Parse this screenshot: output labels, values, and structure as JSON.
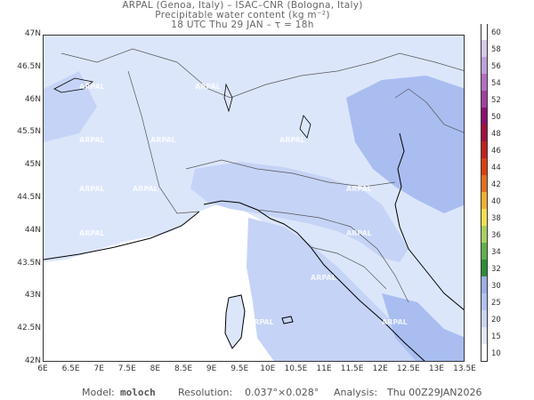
{
  "title": {
    "line1": "ARPAL (Genoa, Italy)  –  ISAC–CNR (Bologna, Italy)",
    "line2": "Precipitable water content (kg m⁻²)",
    "line3": "18 UTC Thu 29 JAN  –  τ = 18h"
  },
  "map": {
    "lat_labels": [
      "47N",
      "46.5N",
      "46N",
      "45.5N",
      "45N",
      "44.5N",
      "44N",
      "43.5N",
      "43N",
      "42.5N",
      "42N"
    ],
    "lon_labels": [
      "6E",
      "6.5E",
      "7E",
      "7.5E",
      "8E",
      "8.5E",
      "9E",
      "9.5E",
      "10E",
      "10.5E",
      "11E",
      "11.5E",
      "12E",
      "12.5E",
      "13E",
      "13.5E"
    ],
    "lat_range": [
      42,
      47
    ],
    "lon_range": [
      6,
      13.5
    ],
    "watermark": "ARPAL",
    "land_color": "#dce6fb",
    "sea_color": "#ffffff",
    "moist_color": "#c5d3f6",
    "high_color": "#a9bdf0"
  },
  "colorbar": {
    "ticks": [
      "10",
      "15",
      "20",
      "25",
      "30",
      "32",
      "34",
      "36",
      "38",
      "40",
      "42",
      "44",
      "46",
      "48",
      "50",
      "52",
      "54",
      "56",
      "58",
      "60"
    ],
    "colors": [
      "#ffffff",
      "#dfe7fa",
      "#c8d5f4",
      "#b0c2ee",
      "#9aaee6",
      "#2e8b3a",
      "#60b050",
      "#a8d060",
      "#f0e050",
      "#f0b030",
      "#e07020",
      "#d84010",
      "#c02020",
      "#a01040",
      "#8a1070",
      "#a040a0",
      "#b070c0",
      "#c0a0d8",
      "#d8c8ec",
      "#ffffff"
    ]
  },
  "footer": {
    "model_label": "Model:",
    "model_value": "moloch",
    "resolution_label": "Resolution:",
    "resolution_value": "0.037°×0.028°",
    "analysis_label": "Analysis:",
    "analysis_value": "Thu 00Z29JAN2026"
  }
}
